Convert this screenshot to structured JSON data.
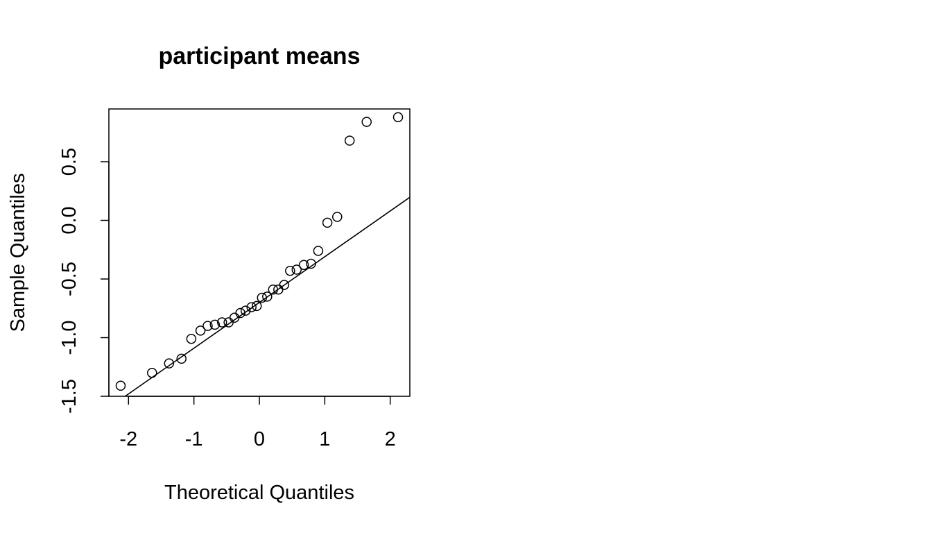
{
  "chart_data": {
    "type": "scatter",
    "title": "participant means",
    "xlabel": "Theoretical Quantiles",
    "ylabel": "Sample Quantiles",
    "xlim": [
      -2.3,
      2.3
    ],
    "ylim": [
      -1.5,
      0.95
    ],
    "x_ticks": [
      -2,
      -1,
      0,
      1,
      2
    ],
    "x_tick_labels": [
      "-2",
      "-1",
      "0",
      "1",
      "2"
    ],
    "y_ticks": [
      -1.5,
      -1.0,
      -0.5,
      0.0,
      0.5
    ],
    "y_tick_labels": [
      "-1.5",
      "-1.0",
      "-0.5",
      "0.0",
      "0.5"
    ],
    "grid": false,
    "reference_line": {
      "intercept": -0.7,
      "slope": 0.39
    },
    "points": [
      {
        "x": -2.12,
        "y": -1.41
      },
      {
        "x": -1.64,
        "y": -1.3
      },
      {
        "x": -1.38,
        "y": -1.22
      },
      {
        "x": -1.19,
        "y": -1.18
      },
      {
        "x": -1.04,
        "y": -1.01
      },
      {
        "x": -0.9,
        "y": -0.94
      },
      {
        "x": -0.79,
        "y": -0.9
      },
      {
        "x": -0.68,
        "y": -0.89
      },
      {
        "x": -0.57,
        "y": -0.87
      },
      {
        "x": -0.47,
        "y": -0.87
      },
      {
        "x": -0.38,
        "y": -0.83
      },
      {
        "x": -0.29,
        "y": -0.79
      },
      {
        "x": -0.21,
        "y": -0.77
      },
      {
        "x": -0.12,
        "y": -0.74
      },
      {
        "x": -0.04,
        "y": -0.73
      },
      {
        "x": 0.04,
        "y": -0.66
      },
      {
        "x": 0.12,
        "y": -0.65
      },
      {
        "x": 0.21,
        "y": -0.59
      },
      {
        "x": 0.29,
        "y": -0.59
      },
      {
        "x": 0.38,
        "y": -0.55
      },
      {
        "x": 0.47,
        "y": -0.43
      },
      {
        "x": 0.57,
        "y": -0.42
      },
      {
        "x": 0.68,
        "y": -0.38
      },
      {
        "x": 0.79,
        "y": -0.37
      },
      {
        "x": 0.9,
        "y": -0.26
      },
      {
        "x": 1.04,
        "y": -0.02
      },
      {
        "x": 1.19,
        "y": 0.03
      },
      {
        "x": 1.38,
        "y": 0.68
      },
      {
        "x": 1.64,
        "y": 0.84
      },
      {
        "x": 2.12,
        "y": 0.88
      }
    ]
  }
}
